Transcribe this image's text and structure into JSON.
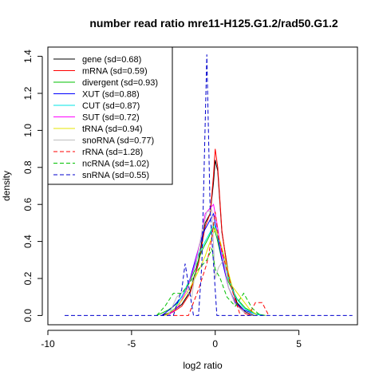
{
  "chart_data": {
    "type": "line",
    "title": "number read ratio mre11-H125.G1.2/rad50.G1.2",
    "xlabel": "log2 ratio",
    "ylabel": "density",
    "xlim": [
      -10,
      8.5
    ],
    "ylim": [
      -0.05,
      1.45
    ],
    "x_ticks": [
      -10,
      -5,
      0,
      5
    ],
    "x_tick_labels": [
      "-10",
      "-5",
      "0",
      "5"
    ],
    "y_ticks": [
      0,
      0.2,
      0.4,
      0.6,
      0.8,
      1.0,
      1.2,
      1.4
    ],
    "y_tick_labels": [
      "0.0",
      "0.2",
      "0.4",
      "0.6",
      "0.8",
      "1.0",
      "1.2",
      "1.4"
    ],
    "grid": false,
    "legend_position": "top-left",
    "series": [
      {
        "name": "gene (sd=0.68)",
        "color": "#000000",
        "dash": "solid",
        "x": [
          -3.2,
          -2.6,
          -2.0,
          -1.5,
          -1.0,
          -0.6,
          -0.3,
          -0.1,
          0.0,
          0.15,
          0.4,
          0.8,
          1.3,
          1.8,
          2.3
        ],
        "y": [
          0.0,
          0.02,
          0.06,
          0.13,
          0.3,
          0.5,
          0.55,
          0.72,
          0.84,
          0.78,
          0.45,
          0.22,
          0.07,
          0.02,
          0.0
        ]
      },
      {
        "name": "mRNA (sd=0.59)",
        "color": "#ff0000",
        "dash": "solid",
        "x": [
          -3.0,
          -2.5,
          -2.0,
          -1.5,
          -1.0,
          -0.6,
          -0.3,
          -0.1,
          0.0,
          0.15,
          0.4,
          0.8,
          1.3,
          1.8,
          2.2
        ],
        "y": [
          0.0,
          0.02,
          0.05,
          0.12,
          0.28,
          0.48,
          0.55,
          0.76,
          0.9,
          0.8,
          0.46,
          0.2,
          0.06,
          0.01,
          0.0
        ]
      },
      {
        "name": "divergent (sd=0.93)",
        "color": "#00c000",
        "dash": "solid",
        "x": [
          -3.5,
          -2.8,
          -2.2,
          -1.7,
          -1.2,
          -0.8,
          -0.4,
          -0.1,
          0.1,
          0.4,
          0.8,
          1.3,
          1.8,
          2.4,
          3.0
        ],
        "y": [
          0.0,
          0.03,
          0.07,
          0.15,
          0.25,
          0.35,
          0.42,
          0.48,
          0.42,
          0.3,
          0.18,
          0.09,
          0.04,
          0.01,
          0.0
        ]
      },
      {
        "name": "XUT (sd=0.88)",
        "color": "#0000ff",
        "dash": "solid",
        "x": [
          -3.2,
          -2.6,
          -2.0,
          -1.5,
          -1.1,
          -0.7,
          -0.4,
          -0.1,
          0.1,
          0.4,
          0.8,
          1.2,
          1.7,
          2.3,
          2.8
        ],
        "y": [
          0.0,
          0.04,
          0.1,
          0.2,
          0.33,
          0.45,
          0.5,
          0.55,
          0.45,
          0.3,
          0.15,
          0.07,
          0.03,
          0.01,
          0.0
        ]
      },
      {
        "name": "CUT (sd=0.87)",
        "color": "#00e5e5",
        "dash": "solid",
        "x": [
          -3.0,
          -2.4,
          -1.9,
          -1.4,
          -1.0,
          -0.6,
          -0.3,
          -0.1,
          0.1,
          0.4,
          0.8,
          1.2,
          1.7,
          2.3,
          2.8
        ],
        "y": [
          0.0,
          0.04,
          0.12,
          0.22,
          0.33,
          0.4,
          0.45,
          0.5,
          0.45,
          0.35,
          0.2,
          0.1,
          0.04,
          0.01,
          0.0
        ]
      },
      {
        "name": "SUT (sd=0.72)",
        "color": "#ff00ff",
        "dash": "solid",
        "x": [
          -2.8,
          -2.2,
          -1.7,
          -1.3,
          -0.9,
          -0.6,
          -0.3,
          -0.1,
          0.1,
          0.4,
          0.8,
          1.2,
          1.7,
          2.2
        ],
        "y": [
          0.0,
          0.05,
          0.14,
          0.25,
          0.4,
          0.55,
          0.58,
          0.6,
          0.5,
          0.33,
          0.15,
          0.06,
          0.02,
          0.0
        ]
      },
      {
        "name": "tRNA (sd=0.94)",
        "color": "#e5e500",
        "dash": "solid",
        "x": [
          -3.0,
          -2.5,
          -2.0,
          -1.5,
          -1.0,
          -0.6,
          -0.3,
          0.0,
          0.3,
          0.6,
          1.0,
          1.5,
          2.0,
          2.5
        ],
        "y": [
          0.0,
          0.03,
          0.08,
          0.15,
          0.24,
          0.32,
          0.4,
          0.47,
          0.4,
          0.3,
          0.16,
          0.1,
          0.04,
          0.0
        ]
      },
      {
        "name": "snoRNA (sd=0.77)",
        "color": "#bebebe",
        "dash": "solid",
        "x": [
          -2.8,
          -2.3,
          -1.8,
          -1.4,
          -1.1,
          -0.8,
          -0.5,
          -0.2,
          0.0,
          0.2,
          0.5,
          0.8,
          1.2,
          1.7,
          2.2
        ],
        "y": [
          0.0,
          0.1,
          0.14,
          0.1,
          0.3,
          0.45,
          0.56,
          0.57,
          0.2,
          0.26,
          0.3,
          0.15,
          0.06,
          0.02,
          0.0
        ]
      },
      {
        "name": "rRNA (sd=1.28)",
        "color": "#ff0000",
        "dash": "dashed",
        "x": [
          -2.5,
          -1.6,
          -1.0,
          -0.5,
          -0.2,
          0.0,
          0.2,
          0.6,
          1.0,
          1.5,
          2.0,
          2.4,
          2.8,
          3.2
        ],
        "y": [
          0.0,
          0.0,
          0.14,
          0.28,
          0.42,
          0.56,
          0.42,
          0.28,
          0.14,
          0.0,
          0.0,
          0.07,
          0.07,
          0.0
        ]
      },
      {
        "name": "ncRNA (sd=1.02)",
        "color": "#00c000",
        "dash": "dashed",
        "x": [
          -3.5,
          -3.0,
          -2.5,
          -2.0,
          -1.5,
          -1.0,
          -0.5,
          -0.2,
          0.0,
          0.3,
          0.7,
          1.2,
          1.7,
          2.2,
          2.7
        ],
        "y": [
          0.0,
          0.05,
          0.12,
          0.12,
          0.18,
          0.25,
          0.3,
          0.36,
          0.25,
          0.2,
          0.1,
          0.05,
          0.12,
          0.04,
          0.0
        ]
      },
      {
        "name": "snRNA (sd=0.55)",
        "color": "#0000cd",
        "dash": "dashed",
        "x": [
          -9.0,
          -2.5,
          -2.0,
          -1.8,
          -1.3,
          -1.0,
          -0.8,
          -0.5,
          -0.3,
          -0.1,
          0.1,
          0.3,
          0.5,
          8.2
        ],
        "y": [
          0.0,
          0.0,
          0.14,
          0.28,
          0.0,
          0.0,
          0.28,
          1.41,
          0.56,
          0.28,
          0.0,
          0.0,
          0.0,
          0.0
        ]
      }
    ]
  }
}
